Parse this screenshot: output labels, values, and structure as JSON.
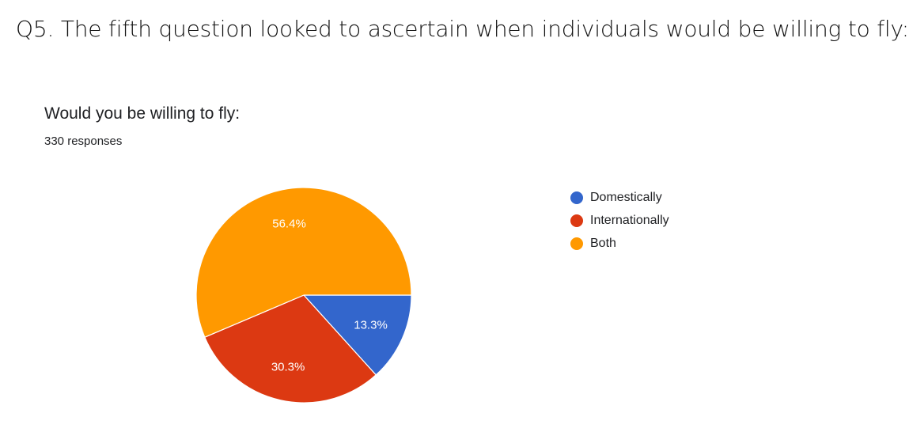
{
  "question": "Q5. The fifth question looked to ascertain when individuals would be willing to fly:",
  "card": {
    "title": "Would you be willing to fly:",
    "responses": "330 responses"
  },
  "colors": {
    "Domestically": "#3366cc",
    "Internationally": "#dc3912",
    "Both": "#ff9900"
  },
  "chart_data": {
    "type": "pie",
    "title": "Would you be willing to fly:",
    "subtitle": "330 responses",
    "legend_position": "right",
    "slices": [
      {
        "label": "Domestically",
        "value": 13.3,
        "display": "13.3%",
        "color": "#3366cc"
      },
      {
        "label": "Internationally",
        "value": 30.3,
        "display": "30.3%",
        "color": "#dc3912"
      },
      {
        "label": "Both",
        "value": 56.4,
        "display": "56.4%",
        "color": "#ff9900"
      }
    ]
  }
}
